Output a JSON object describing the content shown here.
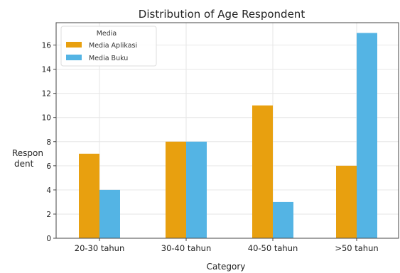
{
  "chart_data": {
    "type": "bar",
    "title": "Distribution of Age Respondent",
    "xlabel": "Category",
    "ylabel": "Respon dent",
    "ylabel_lines": [
      "Respon",
      "dent"
    ],
    "categories": [
      "20-30 tahun",
      "30-40 tahun",
      "40-50 tahun",
      ">50 tahun"
    ],
    "series": [
      {
        "name": "Media Aplikasi",
        "values": [
          7,
          8,
          11,
          6
        ],
        "color": "#E8A00F"
      },
      {
        "name": "Media Buku",
        "values": [
          4,
          8,
          3,
          17
        ],
        "color": "#54B4E4"
      }
    ],
    "ylim": [
      0,
      17.85
    ],
    "yticks": [
      0,
      2,
      4,
      6,
      8,
      10,
      12,
      14,
      16
    ],
    "grid": true,
    "legend": {
      "title": "Media",
      "placement": "top-left"
    }
  }
}
